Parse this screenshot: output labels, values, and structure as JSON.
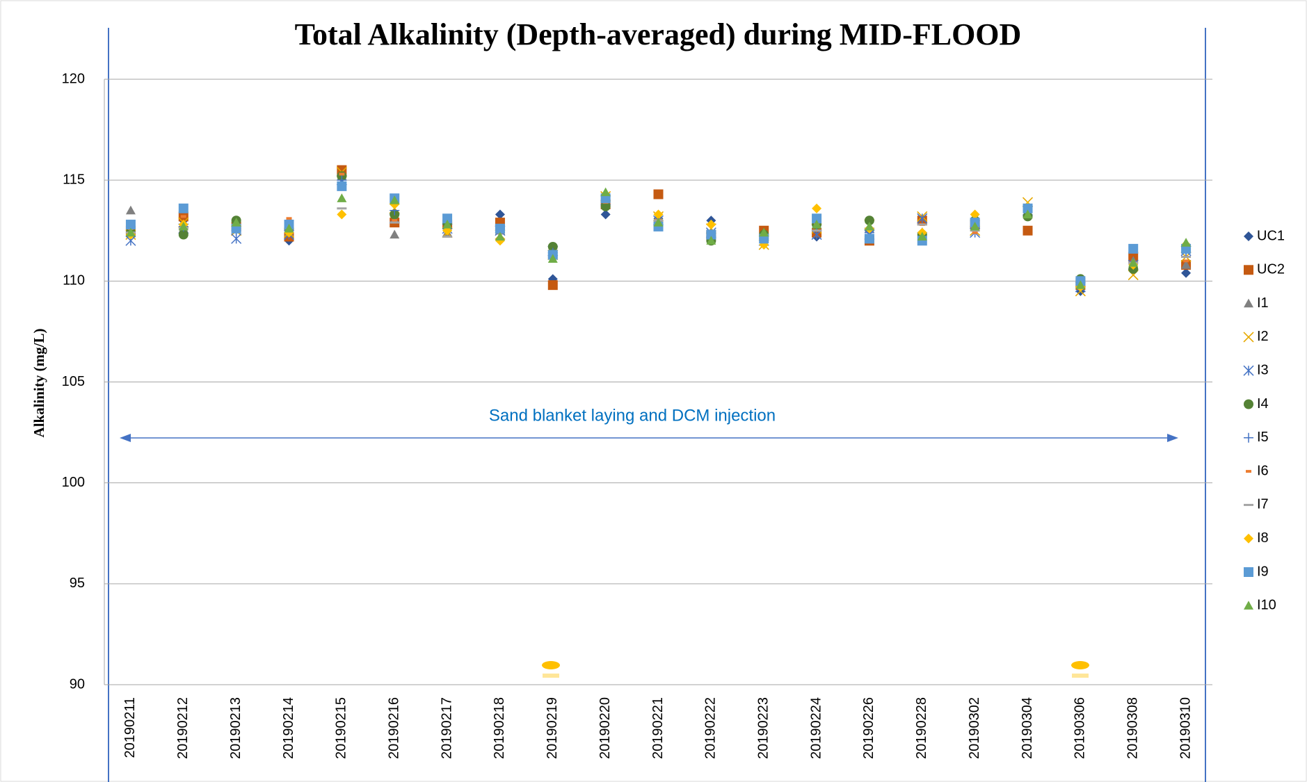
{
  "chart_data": {
    "type": "scatter",
    "title": "Total Alkalinity (Depth-averaged) during MID-FLOOD",
    "y_label": "Alkalinity (mg/L)",
    "annotation": "Sand blanket laying and DCM injection",
    "categories": [
      "20190211",
      "20190212",
      "20190213",
      "20190214",
      "20190215",
      "20190216",
      "20190217",
      "20190218",
      "20190219",
      "20190220",
      "20190221",
      "20190222",
      "20190223",
      "20190224",
      "20190226",
      "20190228",
      "20190302",
      "20190304",
      "20190306",
      "20190308",
      "20190310"
    ],
    "ylim": [
      90,
      120
    ],
    "yticks": [
      90,
      95,
      100,
      105,
      110,
      115,
      120
    ],
    "grid": true,
    "series": [
      {
        "name": "UC1",
        "color": "#2f5597",
        "marker": "diamond",
        "values": [
          112.3,
          113.0,
          112.7,
          112.0,
          115.3,
          113.3,
          112.5,
          113.3,
          110.1,
          113.3,
          113.1,
          113.0,
          112.2,
          112.2,
          112.5,
          112.3,
          112.8,
          113.6,
          109.5,
          110.6,
          110.4
        ]
      },
      {
        "name": "UC2",
        "color": "#c55a11",
        "marker": "square",
        "values": [
          112.5,
          113.2,
          112.7,
          112.2,
          115.5,
          112.9,
          112.8,
          112.9,
          109.8,
          113.8,
          114.3,
          112.3,
          112.5,
          112.4,
          112.0,
          113.0,
          112.8,
          112.5,
          109.8,
          111.2,
          110.8
        ]
      },
      {
        "name": "I1",
        "color": "#808080",
        "marker": "triangle",
        "values": [
          113.5,
          112.6,
          112.6,
          112.4,
          115.2,
          112.3,
          112.4,
          112.5,
          111.3,
          114.1,
          113.2,
          112.2,
          112.3,
          112.8,
          112.6,
          112.2,
          112.9,
          113.3,
          110.0,
          111.0,
          110.8
        ]
      },
      {
        "name": "I2",
        "color": "#e6a800",
        "marker": "x",
        "values": [
          112.3,
          112.9,
          112.5,
          112.4,
          115.4,
          113.6,
          112.4,
          112.3,
          111.3,
          114.2,
          113.2,
          112.6,
          111.8,
          112.6,
          112.8,
          113.2,
          112.5,
          113.9,
          109.5,
          110.3,
          111.2
        ]
      },
      {
        "name": "I3",
        "color": "#4472c4",
        "marker": "star",
        "values": [
          112.0,
          112.6,
          112.1,
          112.3,
          115.0,
          113.1,
          112.6,
          112.5,
          111.5,
          114.0,
          113.0,
          112.4,
          112.0,
          112.3,
          112.3,
          113.1,
          112.4,
          113.5,
          109.7,
          110.8,
          111.5
        ]
      },
      {
        "name": "I4",
        "color": "#548235",
        "marker": "circle",
        "values": [
          112.4,
          112.3,
          113.0,
          112.6,
          115.2,
          113.3,
          112.9,
          112.6,
          111.7,
          113.7,
          112.8,
          112.0,
          112.3,
          112.8,
          113.0,
          112.3,
          113.0,
          113.2,
          110.1,
          110.6,
          111.7
        ]
      },
      {
        "name": "I5",
        "color": "#4472c4",
        "marker": "plus",
        "values": [
          112.2,
          112.7,
          112.5,
          112.5,
          115.0,
          113.5,
          112.6,
          112.4,
          111.4,
          114.2,
          112.9,
          112.1,
          112.1,
          112.5,
          112.4,
          112.4,
          112.6,
          113.6,
          109.8,
          110.9,
          111.4
        ]
      },
      {
        "name": "I6",
        "color": "#ed7d31",
        "marker": "dash",
        "values": [
          112.6,
          113.2,
          112.6,
          113.1,
          115.3,
          113.0,
          112.7,
          112.7,
          111.0,
          113.9,
          113.0,
          112.2,
          112.3,
          112.8,
          112.1,
          112.8,
          112.4,
          113.6,
          109.9,
          110.8,
          111.0
        ]
      },
      {
        "name": "I7",
        "color": "#a5a5a5",
        "marker": "line",
        "values": [
          112.4,
          112.6,
          112.6,
          112.6,
          113.6,
          112.9,
          112.2,
          112.4,
          111.2,
          114.0,
          113.0,
          112.4,
          112.2,
          112.5,
          112.6,
          112.8,
          112.5,
          113.6,
          109.9,
          110.9,
          111.2
        ]
      },
      {
        "name": "I8",
        "color": "#ffc000",
        "marker": "diamond",
        "values": [
          112.3,
          112.8,
          112.6,
          112.4,
          113.3,
          113.8,
          112.5,
          112.0,
          111.2,
          114.2,
          113.3,
          112.8,
          111.8,
          113.6,
          112.6,
          112.4,
          113.3,
          113.7,
          109.7,
          110.8,
          111.8
        ]
      },
      {
        "name": "I9",
        "color": "#5b9bd5",
        "marker": "square",
        "values": [
          112.8,
          113.6,
          112.6,
          112.8,
          114.7,
          114.1,
          113.1,
          112.6,
          111.3,
          114.1,
          112.7,
          112.3,
          112.1,
          113.1,
          112.1,
          112.0,
          112.9,
          113.6,
          110.0,
          111.6,
          111.6
        ]
      },
      {
        "name": "I10",
        "color": "#70ad47",
        "marker": "triangle",
        "values": [
          112.4,
          112.7,
          112.9,
          112.6,
          114.1,
          114.0,
          112.8,
          112.2,
          111.1,
          114.4,
          112.9,
          112.0,
          112.4,
          112.8,
          112.7,
          112.2,
          112.7,
          113.3,
          109.8,
          110.9,
          111.9
        ]
      }
    ]
  }
}
